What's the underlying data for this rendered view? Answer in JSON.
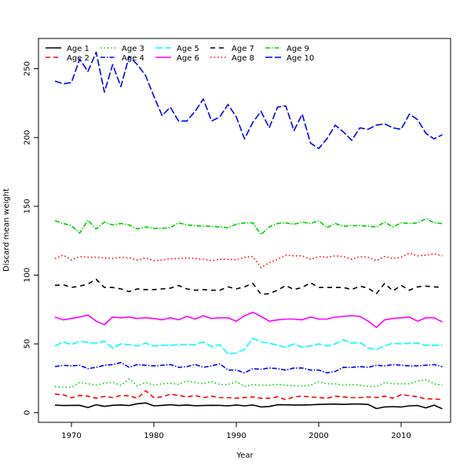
{
  "chart_data": {
    "type": "line",
    "xlabel": "Year",
    "ylabel": "Discard mean weight",
    "xlim": [
      1966,
      2016
    ],
    "ylim": [
      -7,
      272
    ],
    "xticks": [
      1970,
      1980,
      1990,
      2000,
      2010
    ],
    "yticks": [
      0,
      50,
      100,
      150,
      200,
      250
    ],
    "grid": false,
    "legend": "top-left",
    "x": [
      1968,
      1969,
      1970,
      1971,
      1972,
      1973,
      1974,
      1975,
      1976,
      1977,
      1978,
      1979,
      1980,
      1981,
      1982,
      1983,
      1984,
      1985,
      1986,
      1987,
      1988,
      1989,
      1990,
      1991,
      1992,
      1993,
      1994,
      1995,
      1996,
      1997,
      1998,
      1999,
      2000,
      2001,
      2002,
      2003,
      2004,
      2005,
      2006,
      2007,
      2008,
      2009,
      2010,
      2011,
      2012,
      2013,
      2014,
      2015
    ],
    "series": [
      {
        "name": "Age 1",
        "color": "#000000",
        "dash": "solid",
        "values": [
          5.5,
          5.2,
          5.3,
          5.4,
          3.8,
          5.8,
          4.6,
          5.4,
          5.6,
          5.2,
          6.5,
          7.1,
          5.0,
          5.3,
          5.8,
          5.2,
          5.6,
          5.1,
          5.2,
          5.4,
          5.3,
          5.0,
          5.6,
          5.0,
          5.6,
          4.2,
          4.5,
          5.8,
          5.7,
          5.6,
          5.6,
          5.7,
          6.0,
          6.2,
          6.3,
          6.0,
          6.3,
          6.3,
          6.0,
          3.0,
          4.2,
          4.4,
          4.1,
          5.0,
          5.2,
          3.5,
          5.5,
          2.8
        ]
      },
      {
        "name": "Age 2",
        "color": "#ff0000",
        "dash": "6,4",
        "values": [
          13.5,
          13.0,
          10.8,
          12.5,
          12.0,
          10.5,
          11.8,
          11.0,
          12.5,
          12.2,
          10.5,
          16.0,
          11.0,
          11.5,
          13.5,
          12.5,
          11.5,
          12.5,
          11.0,
          12.0,
          11.0,
          11.0,
          10.5,
          11.0,
          11.5,
          10.5,
          10.5,
          11.5,
          9.5,
          11.5,
          12.0,
          11.5,
          11.0,
          10.5,
          12.0,
          11.5,
          11.0,
          11.0,
          11.5,
          11.0,
          12.0,
          10.5,
          13.0,
          12.5,
          11.5,
          10.0,
          10.0,
          9.5
        ]
      },
      {
        "name": "Age 3",
        "color": "#00cd00",
        "dash": "1.5,3",
        "values": [
          19.0,
          18.5,
          18.5,
          22.0,
          21.0,
          20.0,
          21.5,
          22.0,
          20.0,
          24.5,
          19.5,
          22.0,
          20.0,
          21.0,
          21.5,
          20.5,
          23.0,
          22.0,
          21.0,
          22.5,
          20.5,
          20.5,
          22.5,
          19.0,
          20.5,
          20.0,
          20.0,
          20.5,
          20.0,
          19.5,
          19.5,
          20.0,
          22.5,
          21.0,
          21.0,
          20.0,
          20.5,
          20.0,
          19.0,
          19.0,
          22.0,
          21.0,
          21.0,
          21.0,
          23.0,
          24.0,
          21.0,
          20.0
        ]
      },
      {
        "name": "Age 4",
        "color": "#0000ff",
        "dash": "6,2,1.5,2",
        "values": [
          33.5,
          34.5,
          34.0,
          34.5,
          32.0,
          33.0,
          34.5,
          35.0,
          36.5,
          33.0,
          35.0,
          34.5,
          34.0,
          34.5,
          35.0,
          33.0,
          33.5,
          35.0,
          33.0,
          34.0,
          35.5,
          31.0,
          31.0,
          29.0,
          32.0,
          31.5,
          32.5,
          32.0,
          31.0,
          32.5,
          32.5,
          31.0,
          31.0,
          29.0,
          30.0,
          33.0,
          33.0,
          33.5,
          33.0,
          34.5,
          34.0,
          35.0,
          34.5,
          34.0,
          34.0,
          34.5,
          35.0,
          33.5
        ]
      },
      {
        "name": "Age 5",
        "color": "#00ffff",
        "dash": "9,3",
        "values": [
          48.5,
          51.5,
          49.5,
          52.0,
          51.0,
          50.5,
          52.0,
          47.0,
          50.0,
          49.5,
          48.5,
          50.5,
          48.5,
          49.0,
          49.0,
          49.5,
          49.5,
          49.5,
          51.5,
          48.0,
          49.5,
          42.5,
          43.5,
          46.0,
          54.0,
          51.5,
          50.5,
          49.0,
          47.5,
          50.0,
          47.5,
          48.5,
          50.0,
          48.5,
          50.0,
          53.0,
          50.5,
          51.0,
          47.0,
          46.0,
          48.5,
          50.5,
          50.0,
          50.5,
          50.5,
          49.0,
          49.0,
          49.0
        ]
      },
      {
        "name": "Age 6",
        "color": "#ff00ff",
        "dash": "solid",
        "values": [
          69.5,
          67.5,
          68.5,
          69.5,
          71.0,
          66.5,
          64.0,
          69.5,
          69.0,
          69.5,
          68.5,
          69.0,
          68.5,
          67.5,
          69.0,
          67.5,
          70.0,
          68.0,
          70.5,
          68.5,
          69.0,
          69.0,
          66.5,
          70.5,
          73.0,
          70.0,
          66.5,
          67.5,
          68.0,
          68.0,
          67.5,
          69.5,
          68.0,
          68.0,
          69.5,
          70.0,
          70.5,
          70.0,
          66.5,
          62.0,
          67.5,
          68.5,
          69.0,
          69.5,
          66.5,
          69.0,
          69.0,
          66.0
        ]
      },
      {
        "name": "Age 7",
        "color": "#000000",
        "dash": "6,5",
        "values": [
          92.5,
          93.0,
          91.0,
          92.0,
          93.5,
          97.0,
          91.0,
          91.0,
          90.0,
          88.0,
          90.0,
          89.5,
          89.5,
          90.0,
          90.5,
          92.5,
          90.0,
          89.0,
          89.5,
          89.0,
          89.0,
          91.5,
          90.0,
          91.5,
          94.0,
          86.0,
          86.5,
          89.0,
          92.5,
          89.5,
          91.0,
          94.5,
          91.0,
          91.0,
          91.0,
          91.0,
          89.5,
          92.0,
          90.5,
          86.5,
          94.0,
          88.5,
          92.5,
          89.0,
          91.5,
          92.0,
          91.5,
          91.0
        ]
      },
      {
        "name": "Age 8",
        "color": "#ff0000",
        "dash": "1.5,3",
        "values": [
          112.0,
          114.5,
          111.0,
          113.5,
          113.0,
          113.0,
          112.5,
          112.0,
          113.0,
          112.5,
          111.0,
          112.5,
          110.5,
          111.0,
          112.0,
          112.0,
          112.5,
          112.0,
          111.5,
          110.5,
          111.5,
          111.5,
          111.0,
          113.0,
          113.5,
          105.5,
          109.0,
          111.5,
          114.5,
          114.0,
          114.0,
          111.5,
          113.5,
          113.0,
          114.0,
          113.5,
          111.5,
          113.5,
          113.0,
          110.5,
          113.5,
          112.0,
          113.0,
          116.0,
          114.0,
          114.5,
          115.5,
          114.0
        ]
      },
      {
        "name": "Age 9",
        "color": "#00cd00",
        "dash": "6,2,1.5,2",
        "values": [
          139.5,
          137.5,
          136.0,
          130.5,
          140.0,
          133.5,
          138.5,
          136.5,
          137.5,
          136.5,
          133.5,
          135.0,
          134.0,
          134.0,
          134.5,
          138.0,
          136.5,
          136.0,
          135.5,
          135.5,
          135.0,
          134.5,
          137.0,
          138.0,
          138.0,
          129.5,
          135.0,
          137.5,
          138.0,
          137.0,
          138.5,
          137.5,
          139.5,
          134.5,
          137.5,
          135.5,
          136.0,
          136.0,
          135.5,
          135.0,
          138.5,
          135.0,
          138.0,
          137.5,
          138.0,
          141.0,
          138.0,
          137.5
        ]
      },
      {
        "name": "Age 10",
        "color": "#0000ff",
        "dash": "9,3",
        "values": [
          241.0,
          239.0,
          240.0,
          257.0,
          248.0,
          262.0,
          233.0,
          253.0,
          237.0,
          259.0,
          253.0,
          245.0,
          230.0,
          216.0,
          222.0,
          212.0,
          212.0,
          219.0,
          228.0,
          212.0,
          215.0,
          224.0,
          215.0,
          199.0,
          211.0,
          219.0,
          207.0,
          222.0,
          223.0,
          205.0,
          217.0,
          196.0,
          192.0,
          199.0,
          209.0,
          204.0,
          198.0,
          207.0,
          206.0,
          209.0,
          210.0,
          207.0,
          206.0,
          217.0,
          213.0,
          203.0,
          199.0,
          202.0
        ]
      }
    ]
  }
}
